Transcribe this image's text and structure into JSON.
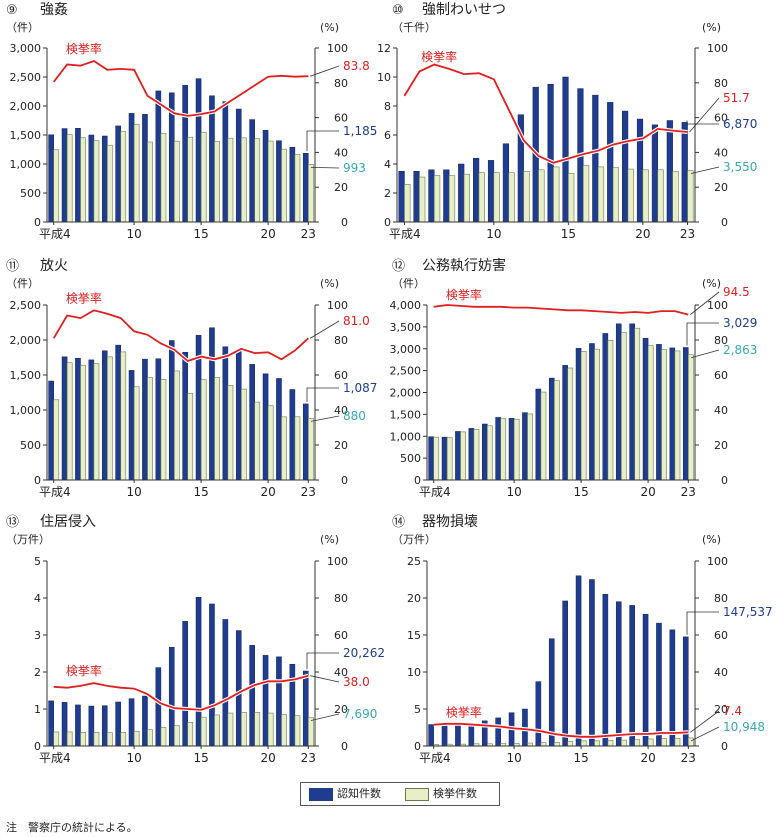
{
  "legend": {
    "recognized": "認知件数",
    "cleared": "検挙件数"
  },
  "note": "注　警察庁の統計による。",
  "colors": {
    "bar1": "#1f3c8f",
    "bar2": "#e8efc8",
    "rate": "#e02020",
    "label1": "#1f3c8f",
    "label2": "#3aa8a8",
    "label3": "#e02020"
  },
  "chart_data": [
    {
      "type": "bar",
      "number": "⑨",
      "title": "強姦",
      "ylabel": "（件）",
      "y2label": "(%)",
      "ylim": [
        0,
        3000
      ],
      "yticks": [
        0,
        500,
        1000,
        1500,
        2000,
        2500,
        3000
      ],
      "ytick_labels": [
        "0",
        "500",
        "1,000",
        "1,500",
        "2,000",
        "2,500",
        "3,000"
      ],
      "y2ticks": [
        0,
        20,
        40,
        60,
        80,
        100
      ],
      "x": [
        4,
        5,
        6,
        7,
        8,
        9,
        10,
        11,
        12,
        13,
        14,
        15,
        16,
        17,
        18,
        19,
        20,
        21,
        22,
        23
      ],
      "xtick_labels": [
        "平成4",
        "10",
        "15",
        "20",
        "23"
      ],
      "xtick_values": [
        4,
        10,
        15,
        20,
        23
      ],
      "rate_label": "検挙率",
      "series": [
        {
          "name": "認知件数",
          "values": [
            1504,
            1611,
            1616,
            1500,
            1483,
            1657,
            1873,
            1857,
            2260,
            2228,
            2357,
            2472,
            2176,
            2076,
            1948,
            1766,
            1582,
            1402,
            1289,
            1185
          ]
        },
        {
          "name": "検挙件数",
          "values": [
            1245,
            1506,
            1452,
            1403,
            1324,
            1560,
            1682,
            1379,
            1527,
            1394,
            1462,
            1548,
            1389,
            1445,
            1451,
            1437,
            1395,
            1256,
            1165,
            993
          ]
        },
        {
          "name": "検挙率",
          "values": [
            80.5,
            90.5,
            89.8,
            92.5,
            87.5,
            88,
            87.5,
            72.5,
            67.5,
            62.5,
            61,
            62,
            63.5,
            68.5,
            73.5,
            78.5,
            83.5,
            84,
            83.5,
            83.8
          ]
        }
      ],
      "end_labels": [
        "1,185",
        "993",
        "83.8"
      ]
    },
    {
      "type": "bar",
      "number": "⑩",
      "title": "強制わいせつ",
      "ylabel": "（千件）",
      "y2label": "(%)",
      "ylim": [
        0,
        12
      ],
      "yticks": [
        0,
        2,
        4,
        6,
        8,
        10,
        12
      ],
      "ytick_labels": [
        "0",
        "2",
        "4",
        "6",
        "8",
        "10",
        "12"
      ],
      "y2ticks": [
        0,
        20,
        40,
        60,
        80,
        100
      ],
      "x": [
        4,
        5,
        6,
        7,
        8,
        9,
        10,
        11,
        12,
        13,
        14,
        15,
        16,
        17,
        18,
        19,
        20,
        21,
        22,
        23
      ],
      "xtick_labels": [
        "平成4",
        "10",
        "15",
        "20",
        "23"
      ],
      "xtick_values": [
        4,
        10,
        15,
        20,
        23
      ],
      "rate_label": "検挙率",
      "series": [
        {
          "name": "認知件数",
          "values": [
            3.5,
            3.5,
            3.6,
            3.6,
            4.0,
            4.4,
            4.25,
            5.4,
            7.4,
            9.3,
            9.5,
            10.0,
            9.2,
            8.75,
            8.25,
            7.65,
            7.1,
            6.7,
            7.0,
            6.87
          ]
        },
        {
          "name": "検挙件数",
          "values": [
            2.6,
            3.1,
            3.2,
            3.2,
            3.3,
            3.4,
            3.4,
            3.4,
            3.5,
            3.6,
            3.8,
            3.35,
            3.9,
            3.8,
            3.75,
            3.65,
            3.6,
            3.6,
            3.5,
            3.55
          ]
        },
        {
          "name": "検挙率",
          "values": [
            72.5,
            86.5,
            90.5,
            88,
            85,
            85.5,
            82,
            64.5,
            47,
            38,
            34,
            36.5,
            39,
            41,
            44.5,
            46.5,
            48,
            53.5,
            52.5,
            51.7
          ]
        }
      ],
      "end_labels": [
        "6,870",
        "3,550",
        "51.7"
      ]
    },
    {
      "type": "bar",
      "number": "⑪",
      "title": "放火",
      "ylabel": "（件）",
      "y2label": "(%)",
      "ylim": [
        0,
        2500
      ],
      "yticks": [
        0,
        500,
        1000,
        1500,
        2000,
        2500
      ],
      "ytick_labels": [
        "0",
        "500",
        "1,000",
        "1,500",
        "2,000",
        "2,500"
      ],
      "y2ticks": [
        0,
        20,
        40,
        60,
        80,
        100
      ],
      "x": [
        4,
        5,
        6,
        7,
        8,
        9,
        10,
        11,
        12,
        13,
        14,
        15,
        16,
        17,
        18,
        19,
        20,
        21,
        22,
        23
      ],
      "xtick_labels": [
        "平成4",
        "10",
        "15",
        "20",
        "23"
      ],
      "xtick_values": [
        4,
        10,
        15,
        20,
        23
      ],
      "rate_label": "検挙率",
      "series": [
        {
          "name": "認知件数",
          "values": [
            1414,
            1760,
            1740,
            1716,
            1846,
            1927,
            1566,
            1727,
            1732,
            1993,
            1825,
            2067,
            2175,
            1904,
            1838,
            1652,
            1517,
            1451,
            1293,
            1087
          ]
        },
        {
          "name": "検挙件数",
          "values": [
            1146,
            1676,
            1640,
            1663,
            1759,
            1830,
            1332,
            1465,
            1436,
            1558,
            1239,
            1432,
            1467,
            1353,
            1298,
            1113,
            1062,
            902,
            903,
            880
          ]
        },
        {
          "name": "検挙率",
          "values": [
            81,
            94,
            92.5,
            97,
            95,
            92.5,
            85,
            83,
            78,
            74.5,
            68,
            70.5,
            69,
            71,
            75,
            72.5,
            73,
            69,
            74,
            81
          ]
        }
      ],
      "end_labels": [
        "1,087",
        "880",
        "81.0"
      ]
    },
    {
      "type": "bar",
      "number": "⑫",
      "title": "公務執行妨害",
      "ylabel": "（件）",
      "y2label": "(%)",
      "ylim": [
        0,
        4000
      ],
      "yticks": [
        0,
        500,
        1000,
        1500,
        2000,
        2500,
        3000,
        3500,
        4000
      ],
      "ytick_labels": [
        "0",
        "500",
        "1,000",
        "1,500",
        "2,000",
        "2,500",
        "3,000",
        "3,500",
        "4,000"
      ],
      "y2ticks": [
        0,
        20,
        40,
        60,
        80,
        100
      ],
      "x": [
        4,
        5,
        6,
        7,
        8,
        9,
        10,
        11,
        12,
        13,
        14,
        15,
        16,
        17,
        18,
        19,
        20,
        21,
        22,
        23
      ],
      "xtick_labels": [
        "平成4",
        "10",
        "15",
        "20",
        "23"
      ],
      "xtick_values": [
        4,
        10,
        15,
        20,
        23
      ],
      "rate_label": "検挙率",
      "series": [
        {
          "name": "認知件数",
          "values": [
            990,
            980,
            1110,
            1180,
            1280,
            1430,
            1410,
            1540,
            2080,
            2330,
            2620,
            3010,
            3120,
            3350,
            3570,
            3570,
            3240,
            3100,
            3020,
            3029
          ]
        },
        {
          "name": "検挙件数",
          "values": [
            980,
            970,
            1100,
            1160,
            1240,
            1400,
            1390,
            1510,
            2010,
            2270,
            2560,
            2940,
            2990,
            3190,
            3370,
            3470,
            3070,
            2980,
            2950,
            2863
          ]
        },
        {
          "name": "検挙率",
          "values": [
            99,
            100,
            99.5,
            99,
            99,
            99,
            98.5,
            98.5,
            98,
            97.5,
            97,
            97,
            96.5,
            96,
            95.5,
            96,
            95.5,
            96.5,
            96.5,
            94.5
          ]
        }
      ],
      "end_labels": [
        "3,029",
        "2,863",
        "94.5"
      ]
    },
    {
      "type": "bar",
      "number": "⑬",
      "title": "住居侵入",
      "ylabel": "（万件）",
      "y2label": "(%)",
      "ylim": [
        0,
        5
      ],
      "yticks": [
        0,
        1,
        2,
        3,
        4,
        5
      ],
      "ytick_labels": [
        "0",
        "1",
        "2",
        "3",
        "4",
        "5"
      ],
      "y2ticks": [
        0,
        20,
        40,
        60,
        80,
        100
      ],
      "x": [
        4,
        5,
        6,
        7,
        8,
        9,
        10,
        11,
        12,
        13,
        14,
        15,
        16,
        17,
        18,
        19,
        20,
        21,
        22,
        23
      ],
      "xtick_labels": [
        "平成4",
        "10",
        "15",
        "20",
        "23"
      ],
      "xtick_values": [
        4,
        10,
        15,
        20,
        23
      ],
      "rate_label": "検挙率",
      "series": [
        {
          "name": "認知件数",
          "values": [
            1.22,
            1.18,
            1.11,
            1.08,
            1.09,
            1.19,
            1.28,
            1.35,
            2.12,
            2.67,
            3.37,
            4.02,
            3.84,
            3.42,
            3.12,
            2.72,
            2.45,
            2.41,
            2.21,
            2.0262
          ]
        },
        {
          "name": "検挙件数",
          "values": [
            0.38,
            0.38,
            0.37,
            0.37,
            0.36,
            0.37,
            0.4,
            0.44,
            0.5,
            0.55,
            0.64,
            0.78,
            0.84,
            0.89,
            0.91,
            0.91,
            0.89,
            0.85,
            0.82,
            0.769
          ]
        },
        {
          "name": "検挙率",
          "values": [
            32,
            31.5,
            32.5,
            34,
            32.5,
            31.5,
            31,
            28,
            23,
            20.5,
            20,
            19.5,
            22,
            25.5,
            29.5,
            33,
            35,
            35,
            36,
            38
          ]
        }
      ],
      "end_labels": [
        "20,262",
        "7,690",
        "38.0"
      ]
    },
    {
      "type": "bar",
      "number": "⑭",
      "title": "器物損壊",
      "ylabel": "（万件）",
      "y2label": "(%)",
      "ylim": [
        0,
        25
      ],
      "yticks": [
        0,
        5,
        10,
        15,
        20,
        25
      ],
      "ytick_labels": [
        "0",
        "5",
        "10",
        "15",
        "20",
        "25"
      ],
      "y2ticks": [
        0,
        20,
        40,
        60,
        80,
        100
      ],
      "x": [
        4,
        5,
        6,
        7,
        8,
        9,
        10,
        11,
        12,
        13,
        14,
        15,
        16,
        17,
        18,
        19,
        20,
        21,
        22,
        23
      ],
      "xtick_labels": [
        "平成4",
        "10",
        "15",
        "20",
        "23"
      ],
      "xtick_values": [
        4,
        10,
        15,
        20,
        23
      ],
      "rate_label": "検挙率",
      "series": [
        {
          "name": "認知件数",
          "values": [
            2.9,
            2.9,
            2.8,
            2.9,
            3.4,
            3.8,
            4.5,
            5.0,
            8.7,
            14.5,
            19.6,
            23.0,
            22.5,
            20.5,
            19.5,
            19.0,
            17.8,
            16.6,
            15.7,
            14.75
          ]
        },
        {
          "name": "検挙件数",
          "values": [
            0.2,
            0.25,
            0.25,
            0.3,
            0.3,
            0.35,
            0.35,
            0.4,
            0.45,
            0.5,
            0.6,
            0.7,
            0.7,
            0.75,
            0.8,
            0.85,
            0.95,
            1.0,
            1.05,
            1.09
          ]
        },
        {
          "name": "検挙率",
          "values": [
            11.5,
            12,
            12,
            11.5,
            11,
            10.5,
            9.5,
            9,
            8,
            6.5,
            5.5,
            5,
            5,
            5.5,
            6,
            6.5,
            6.5,
            7,
            7,
            7.4
          ]
        }
      ],
      "end_labels": [
        "147,537",
        "10,948",
        "7.4"
      ]
    }
  ]
}
